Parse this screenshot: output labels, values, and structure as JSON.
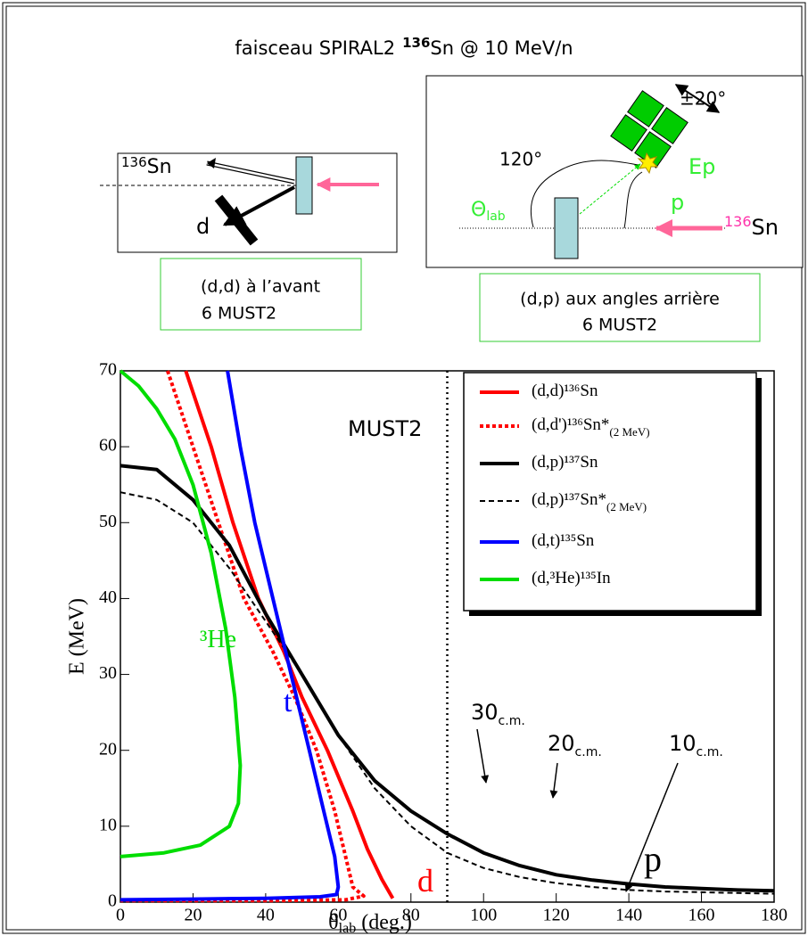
{
  "header": {
    "title_a": "faisceau SPIRAL2",
    "title_mass": "136",
    "title_b": "Sn @ 10 MeV/n"
  },
  "diagram_left": {
    "beam_mass": "136",
    "beam": "Sn",
    "particle": "d",
    "caption_1": "(d,d)  à l’avant",
    "caption_2": "6 MUST2"
  },
  "diagram_right": {
    "angle_range": "±20°",
    "angle": "120°",
    "energy": "Ep",
    "particle": "p",
    "theta": "Θ",
    "theta_sub": "lab",
    "beam_mass": "136",
    "beam": "Sn",
    "caption_1": "(d,p) aux angles arrière",
    "caption_2": "6 MUST2"
  },
  "chart_data": {
    "type": "line",
    "x_label": "θ",
    "x_label_sub": "lab",
    "x_label_unit": " (deg.)",
    "y_label": "E (MeV)",
    "xlim": [
      0,
      180
    ],
    "ylim": [
      0,
      70
    ],
    "xticks": [
      0,
      20,
      40,
      60,
      80,
      100,
      120,
      140,
      160,
      180
    ],
    "yticks": [
      0,
      10,
      20,
      30,
      40,
      50,
      60,
      70
    ],
    "vline": 90,
    "legend": "top-right",
    "series": [
      {
        "name": "(d,d)¹³⁶Sn",
        "color": "#ff0000",
        "dash": "solid",
        "x": [
          18,
          25,
          31,
          38,
          45,
          50,
          57,
          64,
          68,
          72,
          75
        ],
        "values": [
          70,
          60,
          50,
          40,
          33,
          27,
          20,
          12,
          7,
          3,
          0.5
        ]
      },
      {
        "name": "(d,d')¹³⁶Sn*",
        "name_sub": "(2 MeV)",
        "color": "#ff0000",
        "dash": "dotted",
        "x": [
          13,
          20,
          27,
          34,
          42,
          48,
          54,
          59,
          62,
          64,
          67,
          62,
          40,
          0
        ],
        "values": [
          70,
          60,
          50,
          40,
          33,
          27,
          20,
          12,
          6,
          2,
          0.8,
          0.3,
          0.2,
          0.2
        ]
      },
      {
        "name": "(d,p)¹³⁷Sn",
        "color": "#000000",
        "dash": "solid",
        "x": [
          0,
          10,
          20,
          30,
          40,
          50,
          60,
          70,
          80,
          90,
          100,
          110,
          120,
          130,
          140,
          150,
          160,
          170,
          180
        ],
        "values": [
          57.5,
          57,
          53,
          47,
          38,
          30,
          22,
          16,
          12,
          9,
          6.5,
          4.8,
          3.6,
          2.9,
          2.4,
          2,
          1.8,
          1.6,
          1.5
        ]
      },
      {
        "name": "(d,p)¹³⁷Sn*",
        "name_sub": "(2 MeV)",
        "color": "#000000",
        "dash": "dashed",
        "x": [
          0,
          10,
          20,
          30,
          40,
          50,
          60,
          70,
          80,
          90,
          100,
          110,
          120,
          130,
          140,
          150,
          160,
          170,
          180
        ],
        "values": [
          54,
          53,
          50,
          44,
          37,
          30,
          22,
          15,
          10,
          6.5,
          4.5,
          3.3,
          2.5,
          2,
          1.6,
          1.4,
          1.3,
          1.2,
          1.1
        ]
      },
      {
        "name": "(d,t)¹³⁵Sn",
        "color": "#0000ff",
        "dash": "solid",
        "x": [
          29.5,
          33,
          37,
          42,
          47,
          52,
          56,
          59,
          60,
          59.5,
          55,
          40,
          20,
          0
        ],
        "values": [
          70,
          60,
          50,
          40,
          30,
          20,
          12,
          6,
          2,
          1,
          0.7,
          0.5,
          0.4,
          0.3
        ]
      },
      {
        "name": "(d,³He)¹³⁵In",
        "color": "#00dd00",
        "dash": "solid",
        "x": [
          0,
          5,
          10,
          15,
          20,
          25,
          29,
          31.5,
          33,
          32.5,
          30,
          22,
          12,
          0
        ],
        "values": [
          70,
          68,
          65,
          61,
          55,
          46,
          36,
          27,
          18,
          13,
          10,
          7.5,
          6.5,
          6
        ]
      }
    ],
    "annotations": [
      {
        "text": "MUST2",
        "color": "#000000"
      },
      {
        "text": "³He",
        "color": "#00dd00"
      },
      {
        "text": "t",
        "color": "#0000ff"
      },
      {
        "text": "d",
        "color": "#ff0000"
      },
      {
        "text": "p",
        "color": "#000000"
      },
      {
        "text": "30",
        "sub": "c.m.",
        "color": "#000000"
      },
      {
        "text": "20",
        "sub": "c.m.",
        "color": "#000000"
      },
      {
        "text": "10",
        "sub": "c.m.",
        "color": "#000000"
      }
    ]
  }
}
